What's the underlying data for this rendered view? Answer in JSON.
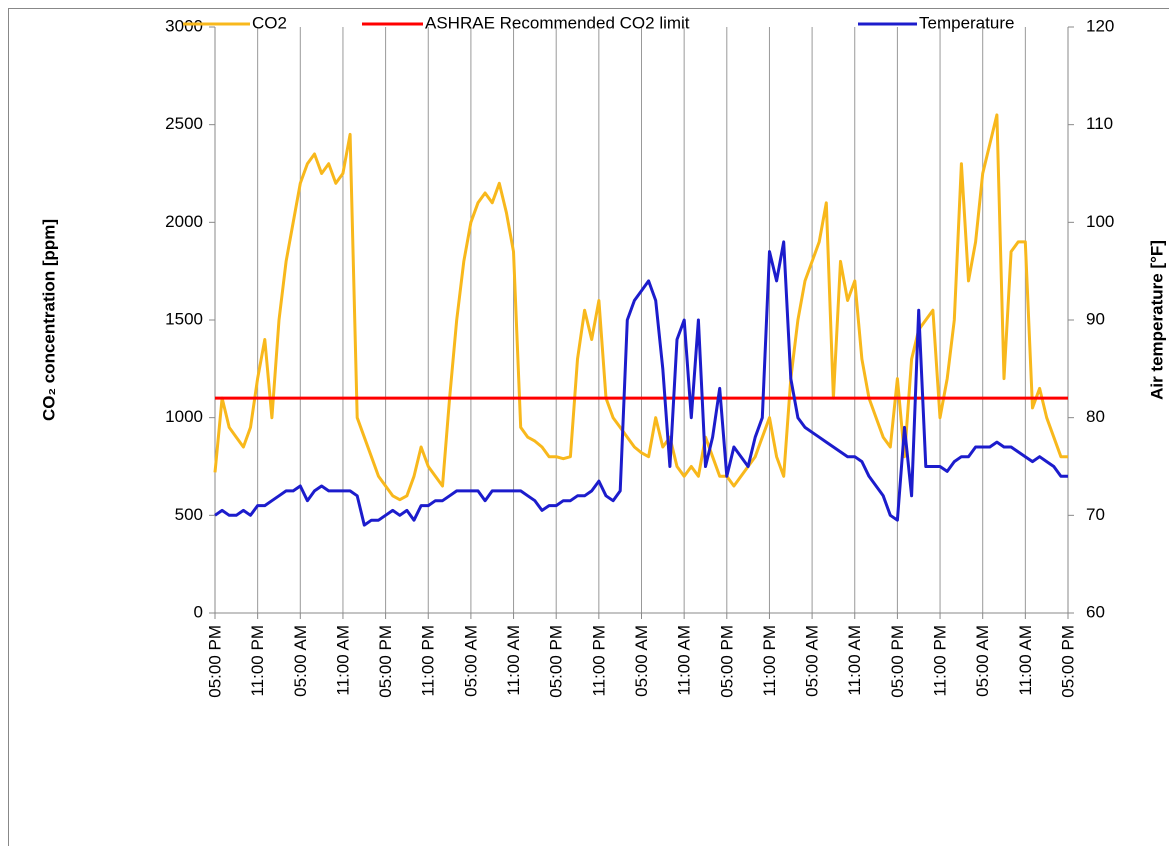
{
  "chart_data": {
    "type": "line",
    "categories": [
      "05:00 PM",
      null,
      null,
      null,
      null,
      null,
      "11:00 PM",
      null,
      null,
      null,
      null,
      null,
      "05:00 AM",
      null,
      null,
      null,
      null,
      null,
      "11:00 AM",
      null,
      null,
      null,
      null,
      null,
      "05:00 PM",
      null,
      null,
      null,
      null,
      null,
      "11:00 PM",
      null,
      null,
      null,
      null,
      null,
      "05:00 AM",
      null,
      null,
      null,
      null,
      null,
      "11:00 AM",
      null,
      null,
      null,
      null,
      null,
      "05:00 PM",
      null,
      null,
      null,
      null,
      null,
      "11:00 PM",
      null,
      null,
      null,
      null,
      null,
      "05:00 AM",
      null,
      null,
      null,
      null,
      null,
      "11:00 AM",
      null,
      null,
      null,
      null,
      null,
      "05:00 PM",
      null,
      null,
      null,
      null,
      null,
      "11:00 PM",
      null,
      null,
      null,
      null,
      null,
      "05:00 AM",
      null,
      null,
      null,
      null,
      null,
      "11:00 AM",
      null,
      null,
      null,
      null,
      null,
      "05:00 PM",
      null,
      null,
      null,
      null,
      null,
      "11:00 PM",
      null,
      null,
      null,
      null,
      null,
      "05:00 AM",
      null,
      null,
      null,
      null,
      null,
      "11:00 AM",
      null,
      null,
      null,
      null,
      null,
      "05:00 PM"
    ],
    "series": [
      {
        "name": "CO2",
        "color": "#f8b81c",
        "values": [
          720,
          1100,
          950,
          900,
          850,
          950,
          1200,
          1400,
          1000,
          1500,
          1800,
          2000,
          2200,
          2300,
          2350,
          2250,
          2300,
          2200,
          2250,
          2450,
          1000,
          900,
          800,
          700,
          650,
          600,
          580,
          600,
          700,
          850,
          750,
          700,
          650,
          1100,
          1500,
          1800,
          2000,
          2100,
          2150,
          2100,
          2200,
          2050,
          1850,
          950,
          900,
          880,
          850,
          800,
          800,
          790,
          800,
          1300,
          1550,
          1400,
          1600,
          1100,
          1000,
          950,
          900,
          850,
          820,
          800,
          1000,
          850,
          900,
          750,
          700,
          750,
          700,
          900,
          800,
          700,
          700,
          650,
          700,
          750,
          800,
          900,
          1000,
          800,
          700,
          1200,
          1500,
          1700,
          1800,
          1900,
          2100,
          1100,
          1800,
          1600,
          1700,
          1300,
          1100,
          1000,
          900,
          850,
          1200,
          800,
          1300,
          1450,
          1500,
          1550,
          1000,
          1200,
          1500,
          2300,
          1700,
          1900,
          2250,
          2400,
          2550,
          1200,
          1850,
          1900,
          1900,
          1050,
          1150,
          1000,
          900,
          800,
          800
        ]
      },
      {
        "name": "ASHRAE Recommended CO2 limit",
        "color": "#ff0000",
        "value": 1100
      },
      {
        "name": "Temperature",
        "color": "#1c1ccc",
        "axis": "y2",
        "values": [
          70,
          70.5,
          70,
          70,
          70.5,
          70,
          71,
          71,
          71.5,
          72,
          72.5,
          72.5,
          73,
          71.5,
          72.5,
          73,
          72.5,
          72.5,
          72.5,
          72.5,
          72,
          69,
          69.5,
          69.5,
          70,
          70.5,
          70,
          70.5,
          69.5,
          71,
          71,
          71.5,
          71.5,
          72,
          72.5,
          72.5,
          72.5,
          72.5,
          71.5,
          72.5,
          72.5,
          72.5,
          72.5,
          72.5,
          72,
          71.5,
          70.5,
          71,
          71,
          71.5,
          71.5,
          72,
          72,
          72.5,
          73.5,
          72,
          71.5,
          72.5,
          90,
          92,
          93,
          94,
          92,
          85,
          75,
          88,
          90,
          80,
          90,
          75,
          78,
          83,
          74,
          77,
          76,
          75,
          78,
          80,
          97,
          94,
          98,
          84,
          80,
          79,
          78.5,
          78,
          77.5,
          77,
          76.5,
          76,
          76,
          75.5,
          74,
          73,
          72,
          70,
          69.5,
          79,
          72,
          91,
          75,
          75,
          75,
          74.5,
          75.5,
          76,
          76,
          77,
          77,
          77,
          77.5,
          77,
          77,
          76.5,
          76,
          75.5,
          76,
          75.5,
          75,
          74,
          74
        ]
      }
    ],
    "ylabel": "CO₂ concentration [ppm]",
    "y2label": "Air temperature [°F]",
    "ylim": [
      0,
      3000
    ],
    "yticks": [
      0,
      500,
      1000,
      1500,
      2000,
      2500,
      3000
    ],
    "y2lim": [
      60,
      120
    ],
    "y2ticks": [
      60,
      70,
      80,
      90,
      100,
      110,
      120
    ],
    "grid": "x",
    "legend": "top"
  }
}
